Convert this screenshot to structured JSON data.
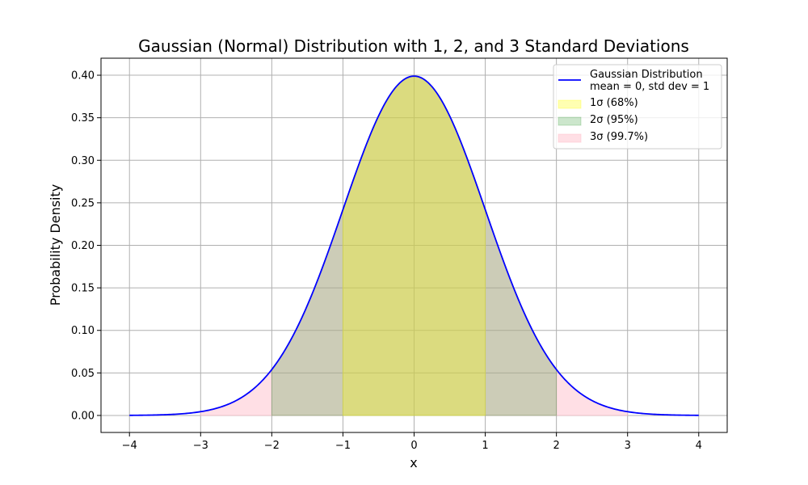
{
  "chart_data": {
    "type": "area",
    "title": "Gaussian (Normal) Distribution with 1, 2, and 3 Standard Deviations",
    "xlabel": "x",
    "ylabel": "Probability Density",
    "xlim": [
      -4.4,
      4.4
    ],
    "ylim": [
      -0.02,
      0.42
    ],
    "xticks": [
      -4,
      -3,
      -2,
      -1,
      0,
      1,
      2,
      3,
      4
    ],
    "xtick_labels": [
      "−4",
      "−3",
      "−2",
      "−1",
      "0",
      "1",
      "2",
      "3",
      "4"
    ],
    "yticks": [
      0.0,
      0.05,
      0.1,
      0.15,
      0.2,
      0.25,
      0.3,
      0.35,
      0.4
    ],
    "ytick_labels": [
      "0.00",
      "0.05",
      "0.10",
      "0.15",
      "0.20",
      "0.25",
      "0.30",
      "0.35",
      "0.40"
    ],
    "grid": true,
    "legend_position": "top-right",
    "series": [
      {
        "name": "Gaussian Distribution\nmean = 0, std dev = 1",
        "kind": "line",
        "color": "#0000ff",
        "mean": 0,
        "std": 1,
        "x_range": [
          -4,
          4
        ],
        "x": [
          -4,
          -3.5,
          -3,
          -2.5,
          -2,
          -1.5,
          -1,
          -0.5,
          0,
          0.5,
          1,
          1.5,
          2,
          2.5,
          3,
          3.5,
          4
        ],
        "y": [
          0.0001,
          0.0009,
          0.0044,
          0.0175,
          0.054,
          0.1295,
          0.242,
          0.3521,
          0.3989,
          0.3521,
          0.242,
          0.1295,
          0.054,
          0.0175,
          0.0044,
          0.0009,
          0.0001
        ]
      },
      {
        "name": "3σ (99.7%)",
        "kind": "fill",
        "range": [
          -3,
          3
        ],
        "color": "#ffc0cb",
        "alpha": 0.5
      },
      {
        "name": "2σ (95%)",
        "kind": "fill",
        "range": [
          -2,
          2
        ],
        "color": "#008000",
        "alpha": 0.2
      },
      {
        "name": "1σ (68%)",
        "kind": "fill",
        "range": [
          -1,
          1
        ],
        "color": "#ffff00",
        "alpha": 0.3
      }
    ],
    "legend": [
      {
        "label_lines": [
          "Gaussian Distribution",
          "mean = 0, std dev = 1"
        ],
        "kind": "line",
        "color": "#0000ff"
      },
      {
        "label_lines": [
          "1σ (68%)"
        ],
        "kind": "patch",
        "color": "#ffff00",
        "alpha": 0.3
      },
      {
        "label_lines": [
          "2σ (95%)"
        ],
        "kind": "patch",
        "color": "#008000",
        "alpha": 0.2
      },
      {
        "label_lines": [
          "3σ (99.7%)"
        ],
        "kind": "patch",
        "color": "#ffc0cb",
        "alpha": 0.5
      }
    ]
  }
}
